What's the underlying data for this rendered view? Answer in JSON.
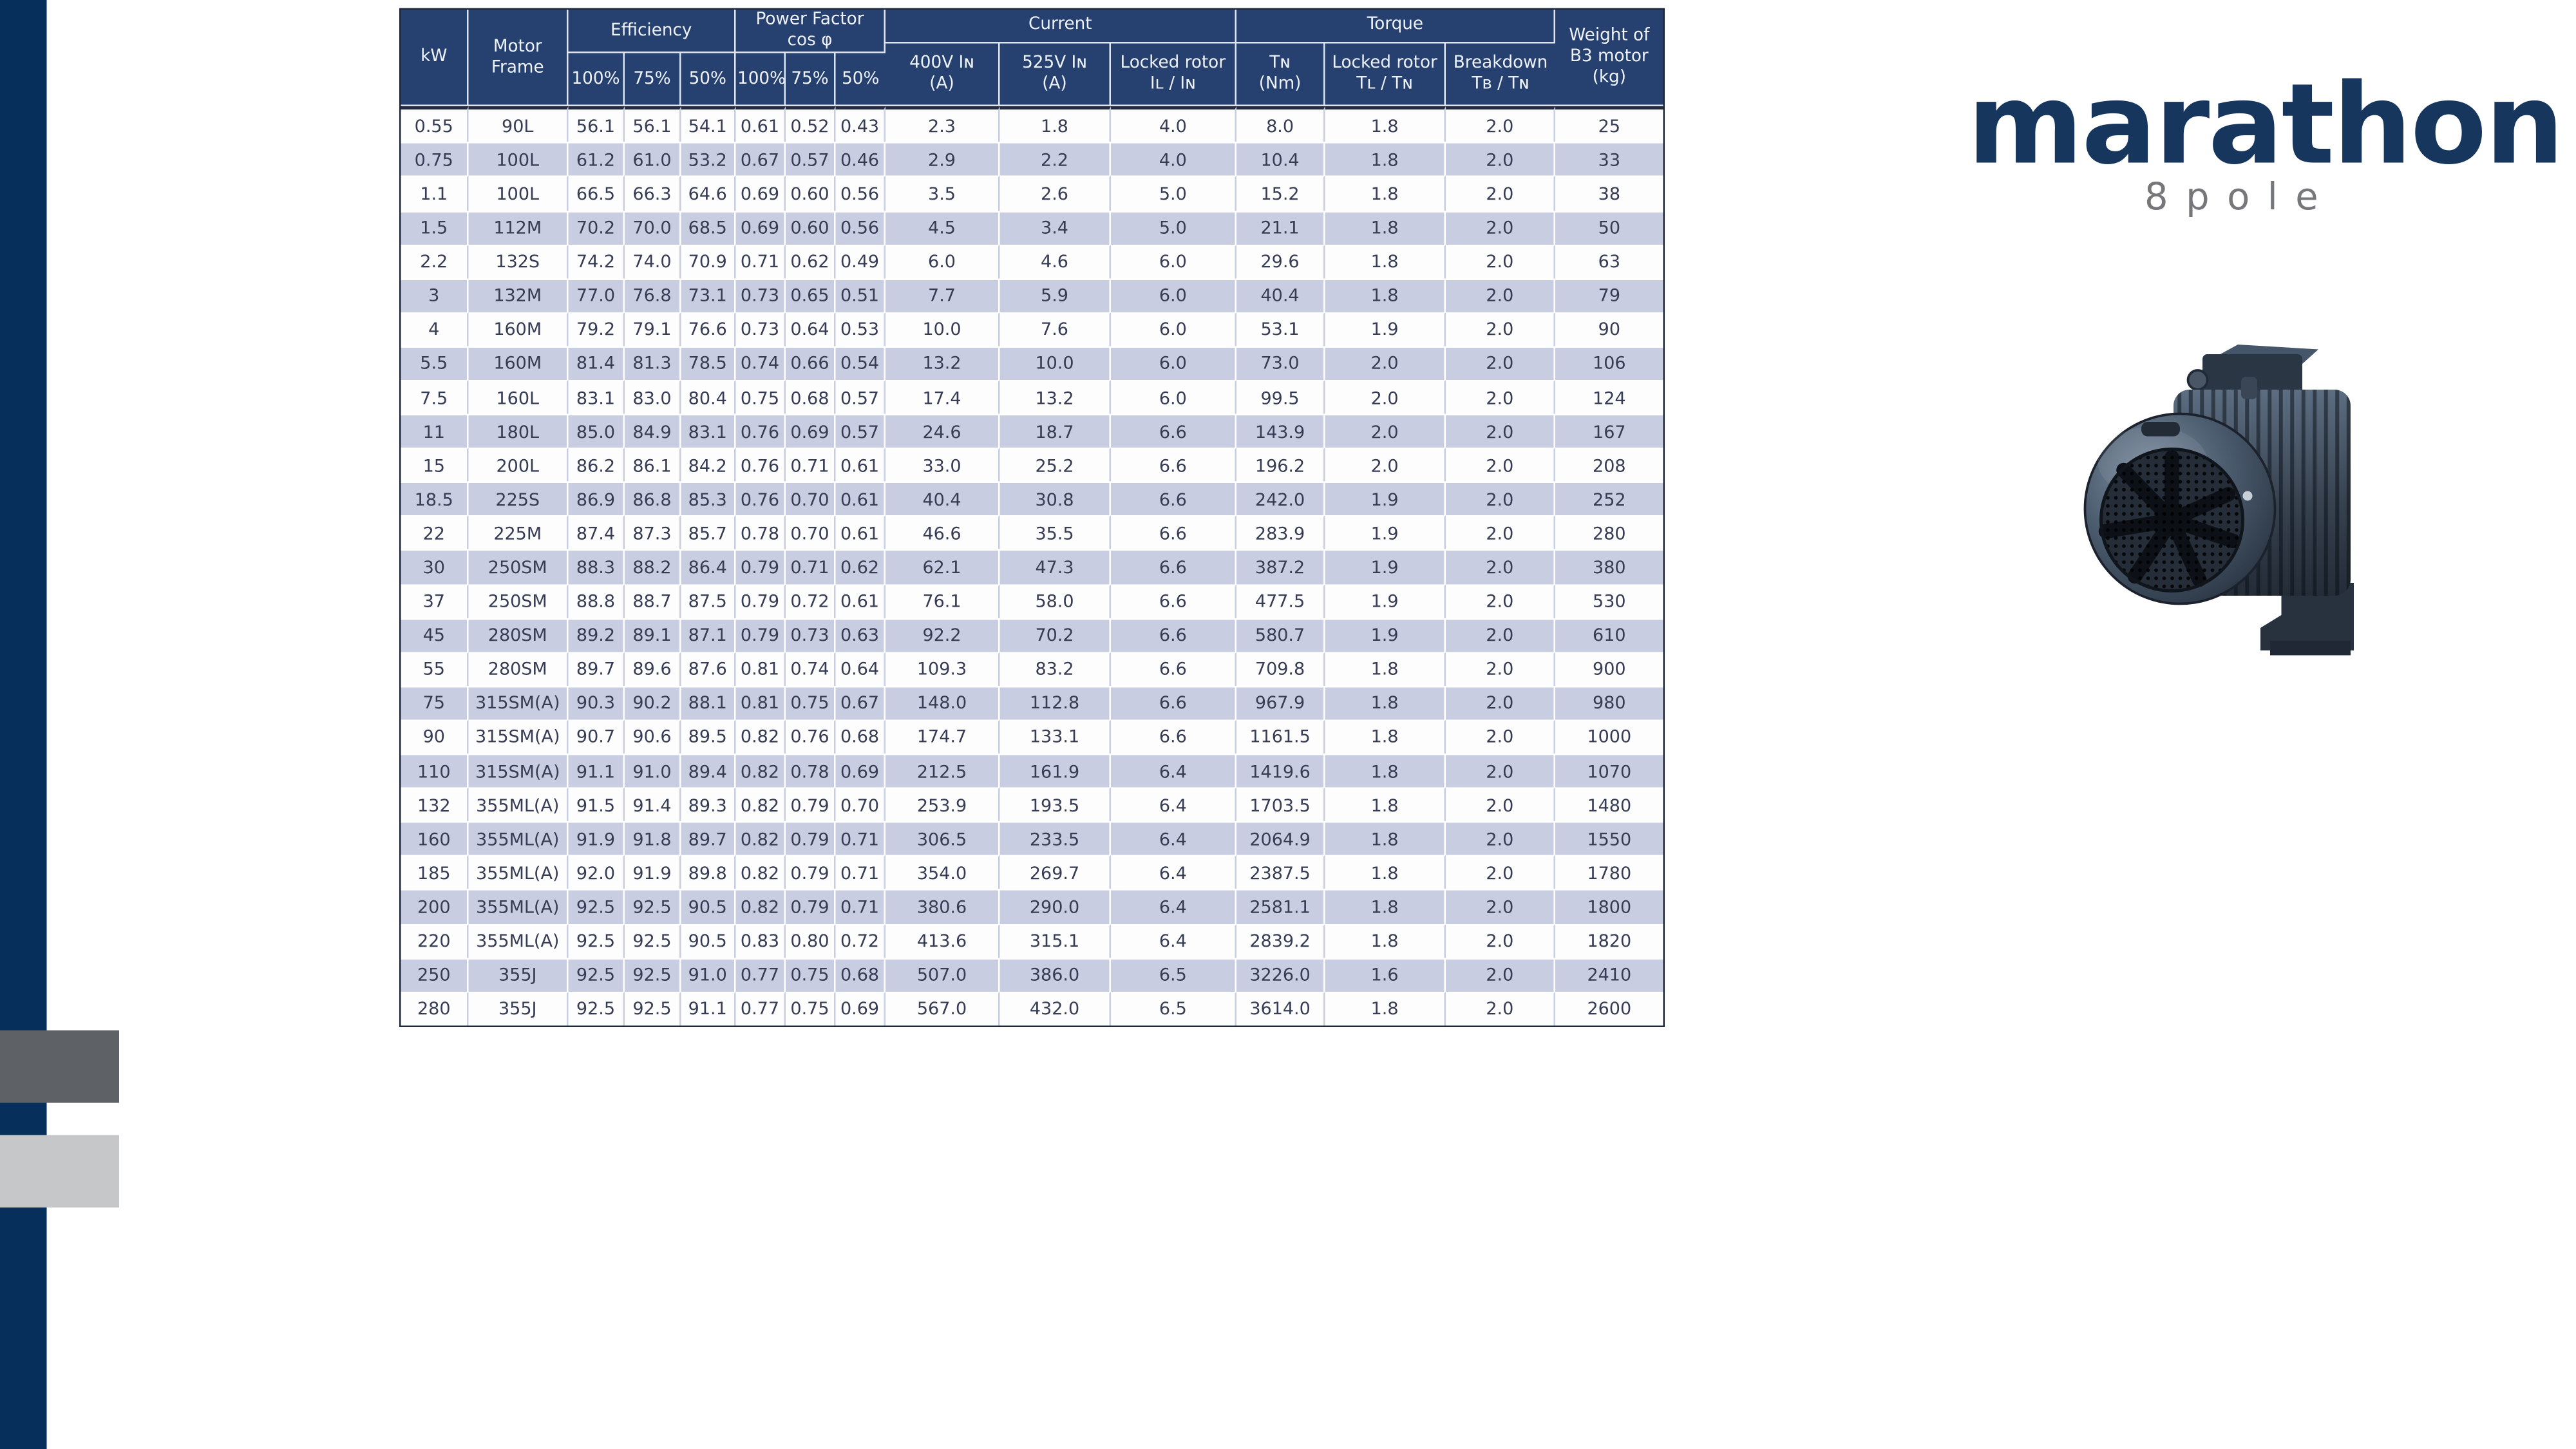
{
  "page": {
    "background": "#ffffff"
  },
  "sidebar": {
    "bar_color": "#06305b",
    "dark_square_color": "#5e6165",
    "light_square_color": "#c6c7c9"
  },
  "logo": {
    "brand": "marathon",
    "sub": "8pole",
    "brand_color": "#16365e",
    "sub_color": "#76777a"
  },
  "motor_image": {
    "description": "dark blue-grey 8 pole B3 foot-mounted electric motor, fan cover facing front-left"
  },
  "table": {
    "header": {
      "kw": "kW",
      "motor_frame": [
        "Motor",
        "Frame"
      ],
      "efficiency": "Efficiency",
      "power_factor": [
        "Power Factor",
        "cos φ"
      ],
      "current": "Current",
      "torque": "Torque",
      "weight": [
        "Weight of",
        "B3 motor",
        "(kg)"
      ],
      "pct": [
        "100%",
        "75%",
        "50%"
      ],
      "current_cols": [
        [
          "400V Iɴ",
          "(A)"
        ],
        [
          "525V Iɴ",
          "(A)"
        ],
        [
          "Locked rotor",
          "Iʟ / Iɴ"
        ]
      ],
      "torque_cols": [
        [
          "Tɴ",
          "(Nm)"
        ],
        [
          "Locked rotor",
          "Tʟ / Tɴ"
        ],
        [
          "Breakdown",
          "Tʙ / Tɴ"
        ]
      ]
    },
    "colors": {
      "header_bg": "#264070",
      "header_text": "#eef2f8",
      "row_shaded": "#c9cde1",
      "row_plain": "#fdfdfe",
      "grid_line": "#c9cde1",
      "data_text": "#363c54"
    },
    "rows": [
      [
        "0.55",
        "90L",
        "56.1",
        "56.1",
        "54.1",
        "0.61",
        "0.52",
        "0.43",
        "2.3",
        "1.8",
        "4.0",
        "8.0",
        "1.8",
        "2.0",
        "25"
      ],
      [
        "0.75",
        "100L",
        "61.2",
        "61.0",
        "53.2",
        "0.67",
        "0.57",
        "0.46",
        "2.9",
        "2.2",
        "4.0",
        "10.4",
        "1.8",
        "2.0",
        "33"
      ],
      [
        "1.1",
        "100L",
        "66.5",
        "66.3",
        "64.6",
        "0.69",
        "0.60",
        "0.56",
        "3.5",
        "2.6",
        "5.0",
        "15.2",
        "1.8",
        "2.0",
        "38"
      ],
      [
        "1.5",
        "112M",
        "70.2",
        "70.0",
        "68.5",
        "0.69",
        "0.60",
        "0.56",
        "4.5",
        "3.4",
        "5.0",
        "21.1",
        "1.8",
        "2.0",
        "50"
      ],
      [
        "2.2",
        "132S",
        "74.2",
        "74.0",
        "70.9",
        "0.71",
        "0.62",
        "0.49",
        "6.0",
        "4.6",
        "6.0",
        "29.6",
        "1.8",
        "2.0",
        "63"
      ],
      [
        "3",
        "132M",
        "77.0",
        "76.8",
        "73.1",
        "0.73",
        "0.65",
        "0.51",
        "7.7",
        "5.9",
        "6.0",
        "40.4",
        "1.8",
        "2.0",
        "79"
      ],
      [
        "4",
        "160M",
        "79.2",
        "79.1",
        "76.6",
        "0.73",
        "0.64",
        "0.53",
        "10.0",
        "7.6",
        "6.0",
        "53.1",
        "1.9",
        "2.0",
        "90"
      ],
      [
        "5.5",
        "160M",
        "81.4",
        "81.3",
        "78.5",
        "0.74",
        "0.66",
        "0.54",
        "13.2",
        "10.0",
        "6.0",
        "73.0",
        "2.0",
        "2.0",
        "106"
      ],
      [
        "7.5",
        "160L",
        "83.1",
        "83.0",
        "80.4",
        "0.75",
        "0.68",
        "0.57",
        "17.4",
        "13.2",
        "6.0",
        "99.5",
        "2.0",
        "2.0",
        "124"
      ],
      [
        "11",
        "180L",
        "85.0",
        "84.9",
        "83.1",
        "0.76",
        "0.69",
        "0.57",
        "24.6",
        "18.7",
        "6.6",
        "143.9",
        "2.0",
        "2.0",
        "167"
      ],
      [
        "15",
        "200L",
        "86.2",
        "86.1",
        "84.2",
        "0.76",
        "0.71",
        "0.61",
        "33.0",
        "25.2",
        "6.6",
        "196.2",
        "2.0",
        "2.0",
        "208"
      ],
      [
        "18.5",
        "225S",
        "86.9",
        "86.8",
        "85.3",
        "0.76",
        "0.70",
        "0.61",
        "40.4",
        "30.8",
        "6.6",
        "242.0",
        "1.9",
        "2.0",
        "252"
      ],
      [
        "22",
        "225M",
        "87.4",
        "87.3",
        "85.7",
        "0.78",
        "0.70",
        "0.61",
        "46.6",
        "35.5",
        "6.6",
        "283.9",
        "1.9",
        "2.0",
        "280"
      ],
      [
        "30",
        "250SM",
        "88.3",
        "88.2",
        "86.4",
        "0.79",
        "0.71",
        "0.62",
        "62.1",
        "47.3",
        "6.6",
        "387.2",
        "1.9",
        "2.0",
        "380"
      ],
      [
        "37",
        "250SM",
        "88.8",
        "88.7",
        "87.5",
        "0.79",
        "0.72",
        "0.61",
        "76.1",
        "58.0",
        "6.6",
        "477.5",
        "1.9",
        "2.0",
        "530"
      ],
      [
        "45",
        "280SM",
        "89.2",
        "89.1",
        "87.1",
        "0.79",
        "0.73",
        "0.63",
        "92.2",
        "70.2",
        "6.6",
        "580.7",
        "1.9",
        "2.0",
        "610"
      ],
      [
        "55",
        "280SM",
        "89.7",
        "89.6",
        "87.6",
        "0.81",
        "0.74",
        "0.64",
        "109.3",
        "83.2",
        "6.6",
        "709.8",
        "1.8",
        "2.0",
        "900"
      ],
      [
        "75",
        "315SM(A)",
        "90.3",
        "90.2",
        "88.1",
        "0.81",
        "0.75",
        "0.67",
        "148.0",
        "112.8",
        "6.6",
        "967.9",
        "1.8",
        "2.0",
        "980"
      ],
      [
        "90",
        "315SM(A)",
        "90.7",
        "90.6",
        "89.5",
        "0.82",
        "0.76",
        "0.68",
        "174.7",
        "133.1",
        "6.6",
        "1161.5",
        "1.8",
        "2.0",
        "1000"
      ],
      [
        "110",
        "315SM(A)",
        "91.1",
        "91.0",
        "89.4",
        "0.82",
        "0.78",
        "0.69",
        "212.5",
        "161.9",
        "6.4",
        "1419.6",
        "1.8",
        "2.0",
        "1070"
      ],
      [
        "132",
        "355ML(A)",
        "91.5",
        "91.4",
        "89.3",
        "0.82",
        "0.79",
        "0.70",
        "253.9",
        "193.5",
        "6.4",
        "1703.5",
        "1.8",
        "2.0",
        "1480"
      ],
      [
        "160",
        "355ML(A)",
        "91.9",
        "91.8",
        "89.7",
        "0.82",
        "0.79",
        "0.71",
        "306.5",
        "233.5",
        "6.4",
        "2064.9",
        "1.8",
        "2.0",
        "1550"
      ],
      [
        "185",
        "355ML(A)",
        "92.0",
        "91.9",
        "89.8",
        "0.82",
        "0.79",
        "0.71",
        "354.0",
        "269.7",
        "6.4",
        "2387.5",
        "1.8",
        "2.0",
        "1780"
      ],
      [
        "200",
        "355ML(A)",
        "92.5",
        "92.5",
        "90.5",
        "0.82",
        "0.79",
        "0.71",
        "380.6",
        "290.0",
        "6.4",
        "2581.1",
        "1.8",
        "2.0",
        "1800"
      ],
      [
        "220",
        "355ML(A)",
        "92.5",
        "92.5",
        "90.5",
        "0.83",
        "0.80",
        "0.72",
        "413.6",
        "315.1",
        "6.4",
        "2839.2",
        "1.8",
        "2.0",
        "1820"
      ],
      [
        "250",
        "355J",
        "92.5",
        "92.5",
        "91.0",
        "0.77",
        "0.75",
        "0.68",
        "507.0",
        "386.0",
        "6.5",
        "3226.0",
        "1.6",
        "2.0",
        "2410"
      ],
      [
        "280",
        "355J",
        "92.5",
        "92.5",
        "91.1",
        "0.77",
        "0.75",
        "0.69",
        "567.0",
        "432.0",
        "6.5",
        "3614.0",
        "1.8",
        "2.0",
        "2600"
      ]
    ]
  }
}
